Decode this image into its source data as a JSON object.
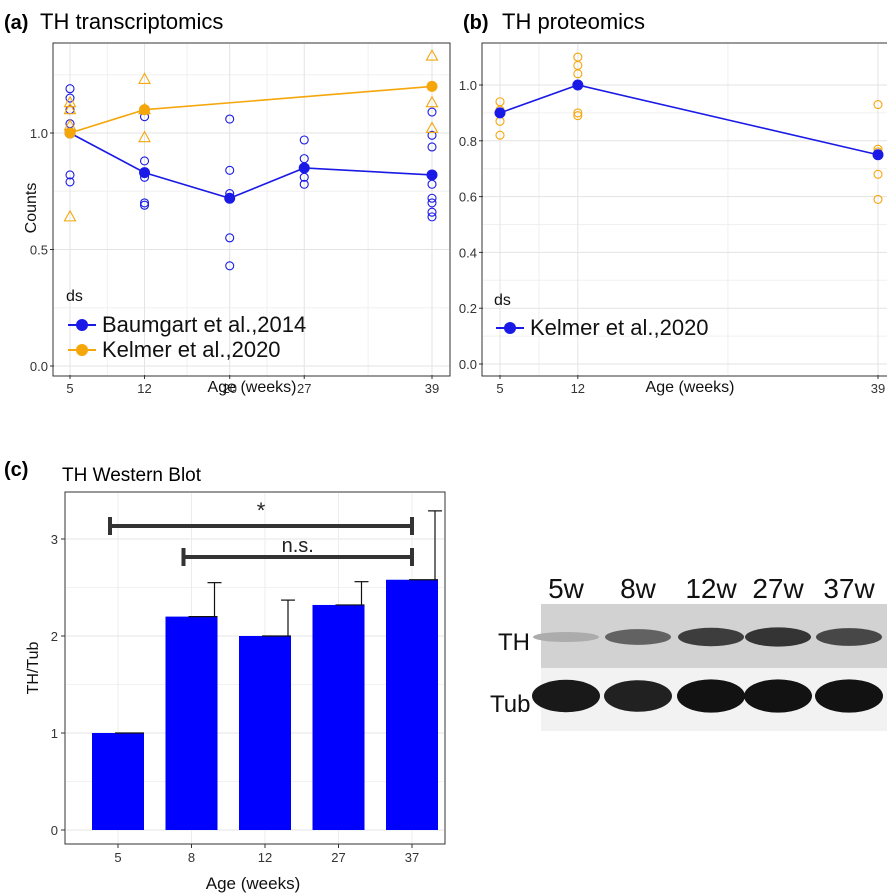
{
  "chart_data": [
    {
      "panel_label": "(a)",
      "title": "TH transcriptomics",
      "type": "scatter",
      "xlabel": "Age (weeks)",
      "ylabel": "Counts",
      "x_ticks": [
        "5",
        "12",
        "20",
        "27",
        "39"
      ],
      "y_ticks": [
        "0.0",
        "0.5",
        "1.0"
      ],
      "xlim": [
        5,
        39
      ],
      "ylim": [
        0,
        1.35
      ],
      "legend_title": "ds",
      "legend_position": "bottom-left",
      "grid": true,
      "series": [
        {
          "name": "Baumgart et al.,2014",
          "color": "#1a1ae6",
          "mean_x": [
            5,
            12,
            20,
            27,
            39
          ],
          "mean_y": [
            1.0,
            0.83,
            0.72,
            0.85,
            0.82
          ],
          "points": [
            [
              5,
              1.19
            ],
            [
              5,
              1.15
            ],
            [
              5,
              1.1
            ],
            [
              5,
              1.04
            ],
            [
              5,
              0.82
            ],
            [
              5,
              0.79
            ],
            [
              12,
              1.07
            ],
            [
              12,
              0.88
            ],
            [
              12,
              0.83
            ],
            [
              12,
              0.81
            ],
            [
              12,
              0.7
            ],
            [
              12,
              0.69
            ],
            [
              20,
              1.06
            ],
            [
              20,
              0.84
            ],
            [
              20,
              0.74
            ],
            [
              20,
              0.72
            ],
            [
              20,
              0.55
            ],
            [
              20,
              0.43
            ],
            [
              27,
              0.97
            ],
            [
              27,
              0.89
            ],
            [
              27,
              0.85
            ],
            [
              27,
              0.81
            ],
            [
              27,
              0.78
            ],
            [
              39,
              1.09
            ],
            [
              39,
              0.99
            ],
            [
              39,
              0.94
            ],
            [
              39,
              0.82
            ],
            [
              39,
              0.78
            ],
            [
              39,
              0.72
            ],
            [
              39,
              0.7
            ],
            [
              39,
              0.66
            ],
            [
              39,
              0.64
            ]
          ]
        },
        {
          "name": "Kelmer et al.,2020",
          "color": "#f5a60a",
          "mean_x": [
            5,
            12,
            39
          ],
          "mean_y": [
            1.0,
            1.1,
            1.2
          ],
          "points": [
            [
              5,
              1.13
            ],
            [
              5,
              1.1
            ],
            [
              5,
              1.03
            ],
            [
              5,
              0.64
            ],
            [
              12,
              1.23
            ],
            [
              12,
              1.1
            ],
            [
              12,
              0.98
            ],
            [
              39,
              1.33
            ],
            [
              39,
              1.13
            ],
            [
              39,
              1.02
            ]
          ]
        }
      ]
    },
    {
      "panel_label": "(b)",
      "title": "TH proteomics",
      "type": "scatter",
      "xlabel": "Age (weeks)",
      "ylabel": "",
      "x_ticks": [
        "5",
        "12",
        "39"
      ],
      "y_ticks": [
        "0.0",
        "0.2",
        "0.4",
        "0.6",
        "0.8",
        "1.0"
      ],
      "xlim": [
        5,
        39
      ],
      "ylim": [
        0,
        1.1
      ],
      "legend_title": "ds",
      "legend_position": "bottom-left",
      "grid": true,
      "series": [
        {
          "name": "Kelmer et al.,2020",
          "color": "#1a1ae6",
          "point_color": "#f5a60a",
          "mean_x": [
            5,
            12,
            39
          ],
          "mean_y": [
            0.9,
            1.0,
            0.75
          ],
          "points": [
            [
              5,
              0.94
            ],
            [
              5,
              0.91
            ],
            [
              5,
              0.87
            ],
            [
              5,
              0.82
            ],
            [
              12,
              1.1
            ],
            [
              12,
              1.07
            ],
            [
              12,
              1.04
            ],
            [
              12,
              0.9
            ],
            [
              12,
              0.89
            ],
            [
              39,
              0.93
            ],
            [
              39,
              0.77
            ],
            [
              39,
              0.76
            ],
            [
              39,
              0.68
            ],
            [
              39,
              0.59
            ]
          ]
        }
      ]
    },
    {
      "panel_label": "(c)",
      "title": "TH Western Blot",
      "type": "bar",
      "xlabel": "Age (weeks)",
      "ylabel": "TH/Tub",
      "categories": [
        "5",
        "8",
        "12",
        "27",
        "37"
      ],
      "values": [
        1.0,
        2.2,
        2.0,
        2.32,
        2.58
      ],
      "errors": [
        0.0,
        0.35,
        0.37,
        0.24,
        0.71
      ],
      "y_ticks": [
        "0",
        "1",
        "2",
        "3"
      ],
      "ylim": [
        0,
        3.4
      ],
      "color": "#0000ff",
      "grid": true,
      "significance": [
        {
          "from": "5",
          "to": "37",
          "label": "*"
        },
        {
          "from": "8",
          "to": "37",
          "label": "n.s."
        }
      ]
    }
  ],
  "western_blot": {
    "lane_labels": [
      "5w",
      "8w",
      "12w",
      "27w",
      "37w"
    ],
    "row_labels": [
      "TH",
      "Tub"
    ],
    "th_intensity": [
      0.15,
      0.55,
      0.75,
      0.8,
      0.7
    ],
    "tub_intensity": [
      0.9,
      0.85,
      0.95,
      0.95,
      0.95
    ]
  }
}
